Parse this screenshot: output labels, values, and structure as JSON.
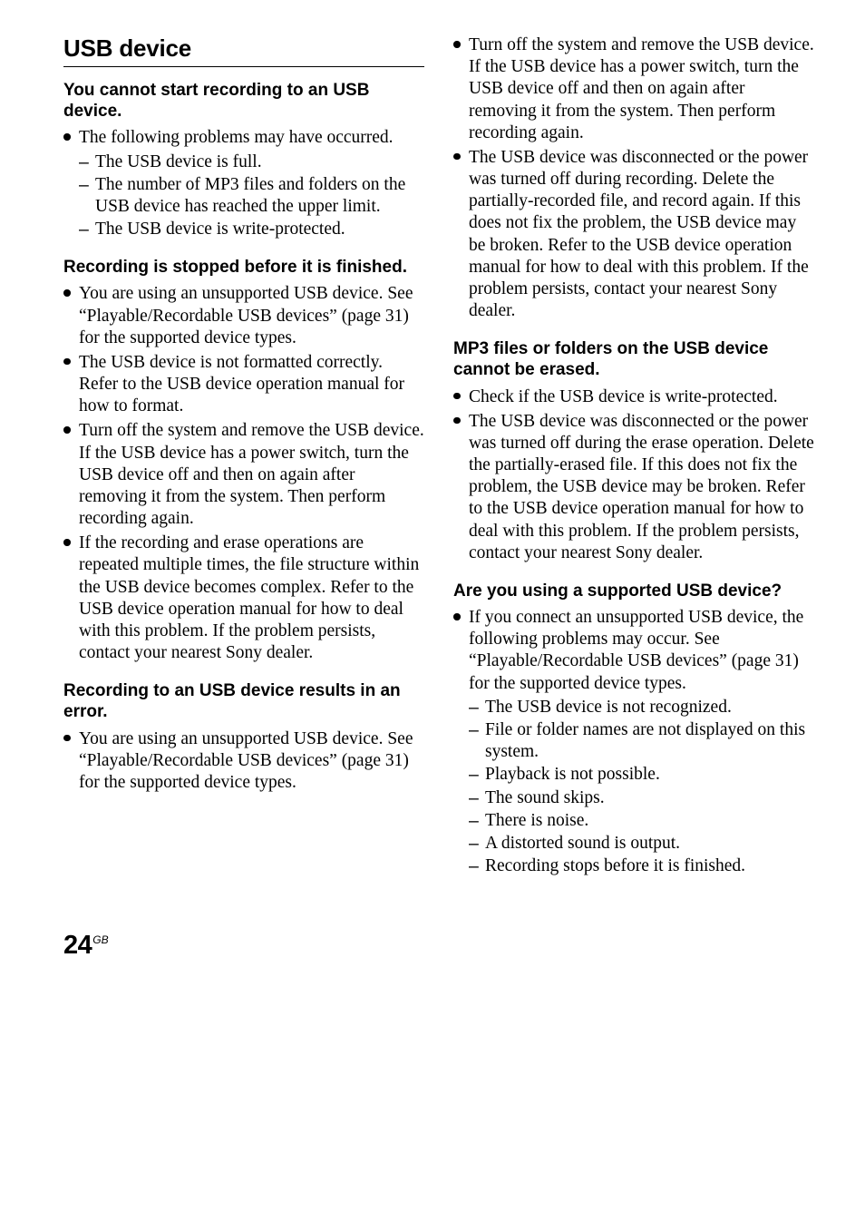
{
  "section_title": "USB device",
  "left": {
    "q1": {
      "title": "You cannot start recording to an USB device.",
      "b1": "The following problems may have occurred.",
      "d1": "The USB device is full.",
      "d2": "The number of MP3 files and folders on the USB device has reached the upper limit.",
      "d3": "The USB device is write-protected."
    },
    "q2": {
      "title": "Recording is stopped before it is finished.",
      "b1": "You are using an unsupported USB device. See “Playable/Recordable USB devices” (page 31) for the supported device types.",
      "b2": "The USB device is not formatted correctly. Refer to the USB device operation manual for how to format.",
      "b3": "Turn off the system and remove the USB device. If the USB device has a power switch, turn the USB device off and then on again after removing it from the system. Then perform recording again.",
      "b4": "If the recording and erase operations are repeated multiple times, the file structure within the USB device becomes complex. Refer to the USB device operation manual for how to deal with this problem. If the problem persists, contact your nearest Sony dealer."
    },
    "q3": {
      "title": "Recording to an USB device results in an error.",
      "b1": "You are using an unsupported USB device. See “Playable/Recordable USB devices” (page 31) for the supported device types."
    }
  },
  "right": {
    "cont": {
      "b1": "Turn off the system and remove the USB device. If the USB device has a power switch, turn the USB device off and then on again after removing it from the system. Then perform recording again.",
      "b2": "The USB device was disconnected or the power was turned off during recording. Delete the partially-recorded file, and record again. If this does not fix the problem, the USB device may be broken. Refer to the USB device operation manual for how to deal with this problem. If the problem persists, contact your nearest Sony dealer."
    },
    "q4": {
      "title": "MP3 files or folders on the USB device cannot be erased.",
      "b1": "Check if the USB device is write-protected.",
      "b2": "The USB device was disconnected or the power was turned off during the erase operation. Delete the partially-erased file. If this does not fix the problem, the USB device may be broken. Refer to the USB device operation manual for how to deal with this problem. If the problem persists, contact your nearest Sony dealer."
    },
    "q5": {
      "title": "Are you using a supported USB device?",
      "b1": "If you connect an unsupported USB device, the following problems may occur. See “Playable/Recordable USB devices” (page 31) for the supported device types.",
      "d1": "The USB device is not recognized.",
      "d2": "File or folder names are not displayed on this system.",
      "d3": "Playback is not possible.",
      "d4": "The sound skips.",
      "d5": "There is noise.",
      "d6": "A distorted sound is output.",
      "d7": "Recording stops before it is finished."
    }
  },
  "footer": {
    "page": "24",
    "lang": "GB"
  }
}
